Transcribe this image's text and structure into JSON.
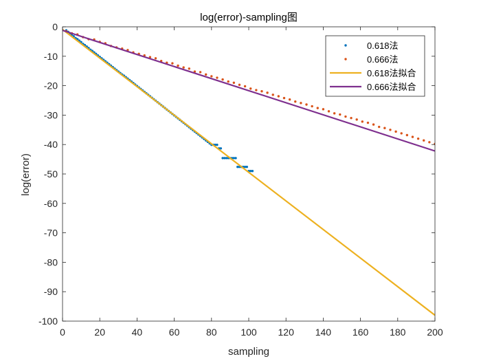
{
  "chart_data": {
    "type": "scatter",
    "title": "log(error)-sampling图",
    "xlabel": "sampling",
    "ylabel": "log(error)",
    "xlim": [
      0,
      200
    ],
    "ylim": [
      -100,
      0
    ],
    "xticks": [
      0,
      20,
      40,
      60,
      80,
      100,
      120,
      140,
      160,
      180,
      200
    ],
    "yticks": [
      0,
      -10,
      -20,
      -30,
      -40,
      -50,
      -60,
      -70,
      -80,
      -90,
      -100
    ],
    "grid": false,
    "legend_position": "top-right",
    "series": [
      {
        "name": "0.618法",
        "kind": "scatter",
        "color": "#0072BD",
        "x": [
          2,
          3,
          4,
          5,
          6,
          7,
          8,
          9,
          10,
          11,
          12,
          13,
          14,
          15,
          16,
          17,
          18,
          19,
          20,
          21,
          22,
          23,
          24,
          25,
          26,
          27,
          28,
          29,
          30,
          31,
          32,
          33,
          34,
          35,
          36,
          37,
          38,
          39,
          40,
          41,
          42,
          43,
          44,
          45,
          46,
          47,
          48,
          49,
          50,
          51,
          52,
          53,
          54,
          55,
          56,
          57,
          58,
          59,
          60,
          61,
          62,
          63,
          64,
          65,
          66,
          67,
          68,
          69,
          70,
          71,
          72,
          73,
          74,
          75,
          76,
          77,
          78,
          79,
          80,
          81,
          82,
          83,
          84,
          85,
          86,
          87,
          88,
          89,
          90,
          91,
          92,
          93,
          94,
          95,
          96,
          97,
          98,
          99,
          100,
          101,
          102
        ],
        "y": [
          -1.2,
          -1.7,
          -2.2,
          -2.7,
          -3.2,
          -3.8,
          -4.2,
          -4.7,
          -5.2,
          -5.8,
          -6.2,
          -6.7,
          -7.2,
          -7.8,
          -8.2,
          -8.7,
          -9.2,
          -9.7,
          -10.2,
          -10.7,
          -11.2,
          -11.7,
          -12.2,
          -12.7,
          -13.2,
          -13.7,
          -14.2,
          -14.7,
          -15.2,
          -15.7,
          -16.2,
          -16.6,
          -17.1,
          -17.6,
          -18.1,
          -18.6,
          -19.1,
          -19.6,
          -20.1,
          -20.6,
          -21.1,
          -21.6,
          -22.1,
          -22.6,
          -23.1,
          -23.6,
          -24.1,
          -24.6,
          -25.1,
          -25.6,
          -26.1,
          -26.6,
          -27.1,
          -27.6,
          -28.1,
          -28.6,
          -29.1,
          -29.6,
          -30.1,
          -30.6,
          -31.1,
          -31.6,
          -32.1,
          -32.6,
          -33.1,
          -33.6,
          -34.1,
          -34.6,
          -35.1,
          -35.6,
          -36.1,
          -36.6,
          -37.1,
          -37.6,
          -38.1,
          -38.6,
          -39.1,
          -39.6,
          -40.1,
          -40.1,
          -40.1,
          -40.1,
          -41.3,
          -41.3,
          -44.6,
          -44.6,
          -44.6,
          -44.6,
          -44.6,
          -44.6,
          -44.6,
          -44.6,
          -47.6,
          -47.6,
          -47.6,
          -47.6,
          -47.6,
          -47.6,
          -49.0,
          -49.0,
          -49.0
        ]
      },
      {
        "name": "0.666法",
        "kind": "scatter",
        "color": "#D95319",
        "x": [
          2,
          5,
          8,
          11,
          14,
          17,
          20,
          23,
          26,
          29,
          32,
          35,
          38,
          41,
          44,
          47,
          50,
          53,
          56,
          59,
          62,
          65,
          68,
          71,
          74,
          77,
          80,
          83,
          86,
          89,
          92,
          95,
          98,
          101,
          104,
          107,
          110,
          113,
          116,
          119,
          122,
          125,
          128,
          131,
          134,
          137,
          140,
          143,
          146,
          149,
          152,
          155,
          158,
          161,
          164,
          167,
          170,
          173,
          176,
          179,
          182,
          185,
          188,
          191,
          194,
          197,
          200
        ],
        "y": [
          -1.5,
          -2.2,
          -2.6,
          -3.5,
          -4.2,
          -4.3,
          -5.1,
          -5.6,
          -6.5,
          -7.0,
          -7.4,
          -7.9,
          -8.7,
          -9.2,
          -9.7,
          -10.3,
          -10.7,
          -11.6,
          -12.2,
          -12.4,
          -13.2,
          -13.8,
          -14.2,
          -15.2,
          -15.4,
          -16.2,
          -16.8,
          -17.3,
          -17.9,
          -18.6,
          -19.0,
          -19.7,
          -20.2,
          -21.0,
          -21.5,
          -21.9,
          -22.4,
          -23.1,
          -23.6,
          -24.2,
          -24.7,
          -25.4,
          -25.9,
          -26.4,
          -27.0,
          -27.6,
          -28.0,
          -28.7,
          -29.4,
          -29.8,
          -30.5,
          -31.0,
          -31.5,
          -32.2,
          -32.6,
          -33.2,
          -34.0,
          -34.4,
          -35.0,
          -35.6,
          -36.2,
          -36.8,
          -37.4,
          -38.0,
          -38.6,
          -39.2,
          -39.8
        ]
      },
      {
        "name": "0.618法拟合",
        "kind": "line",
        "color": "#EDB120",
        "x": [
          0,
          200
        ],
        "y": [
          -0.9,
          -98
        ]
      },
      {
        "name": "0.666法拟合",
        "kind": "line",
        "color": "#7E2F8E",
        "x": [
          0,
          200
        ],
        "y": [
          -1.2,
          -42.2
        ]
      }
    ]
  }
}
